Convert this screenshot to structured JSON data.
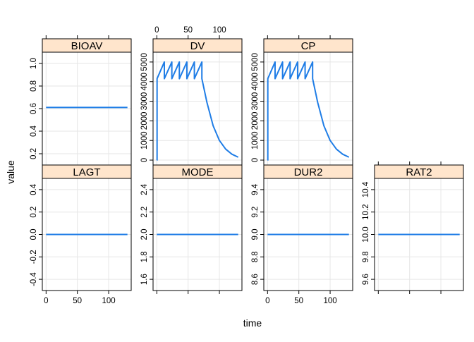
{
  "chart_data": {
    "type": "line",
    "layout": "lattice-panels",
    "xlabel": "time",
    "ylabel": "value",
    "line_color": "#1f7de6",
    "strip_color": "#ffe5cc",
    "grid": true,
    "panels": [
      {
        "name": "BIOAV",
        "ylim": [
          0.1,
          1.1
        ],
        "yticks": [
          "0.2",
          "0.4",
          "0.6",
          "0.8",
          "1.0"
        ],
        "ytick_values": [
          0.2,
          0.4,
          0.6,
          0.8,
          1.0
        ],
        "x": [
          0,
          130
        ],
        "y": [
          0.61,
          0.61
        ]
      },
      {
        "name": "DV",
        "ylim": [
          -250,
          5500
        ],
        "yticks": [
          "0",
          "1000",
          "2000",
          "3000",
          "4000",
          "5000"
        ],
        "ytick_values": [
          0,
          1000,
          2000,
          3000,
          4000,
          5000
        ],
        "x": [
          0,
          0.4,
          0.4,
          12,
          12,
          24,
          24,
          36,
          36,
          48,
          48,
          60,
          60,
          72,
          72,
          80,
          90,
          100,
          110,
          120,
          130
        ],
        "y": [
          0,
          0,
          4150,
          5000,
          4150,
          5000,
          4150,
          5000,
          4150,
          5000,
          4150,
          5000,
          4150,
          5000,
          4150,
          2950,
          1750,
          1000,
          560,
          300,
          150
        ]
      },
      {
        "name": "CP",
        "ylim": [
          -250,
          5500
        ],
        "yticks": [
          "0",
          "1000",
          "2000",
          "3000",
          "4000",
          "5000"
        ],
        "ytick_values": [
          0,
          1000,
          2000,
          3000,
          4000,
          5000
        ],
        "x": [
          0,
          0.4,
          0.4,
          12,
          12,
          24,
          24,
          36,
          36,
          48,
          48,
          60,
          60,
          72,
          72,
          80,
          90,
          100,
          110,
          120,
          130
        ],
        "y": [
          0,
          0,
          4150,
          5000,
          4150,
          5000,
          4150,
          5000,
          4150,
          5000,
          4150,
          5000,
          4150,
          5000,
          4150,
          2950,
          1750,
          1000,
          560,
          300,
          150
        ]
      },
      {
        "name": "LAGT",
        "ylim": [
          -0.5,
          0.5
        ],
        "yticks": [
          "-0.4",
          "-0.2",
          "0.0",
          "0.2",
          "0.4"
        ],
        "ytick_values": [
          -0.4,
          -0.2,
          0.0,
          0.2,
          0.4
        ],
        "x": [
          0,
          130
        ],
        "y": [
          0,
          0
        ]
      },
      {
        "name": "MODE",
        "ylim": [
          1.5,
          2.5
        ],
        "yticks": [
          "1.6",
          "1.8",
          "2.0",
          "2.2",
          "2.4"
        ],
        "ytick_values": [
          1.6,
          1.8,
          2.0,
          2.2,
          2.4
        ],
        "x": [
          0,
          130
        ],
        "y": [
          2,
          2
        ]
      },
      {
        "name": "DUR2",
        "ylim": [
          8.5,
          9.5
        ],
        "yticks": [
          "8.6",
          "8.8",
          "9.0",
          "9.2",
          "9.4"
        ],
        "ytick_values": [
          8.6,
          8.8,
          9.0,
          9.2,
          9.4
        ],
        "x": [
          0,
          130
        ],
        "y": [
          9,
          9
        ]
      },
      {
        "name": "RAT2",
        "ylim": [
          9.5,
          10.5
        ],
        "yticks": [
          "9.6",
          "9.8",
          "10.0",
          "10.2",
          "10.4"
        ],
        "ytick_values": [
          9.6,
          9.8,
          10.0,
          10.2,
          10.4
        ],
        "x": [
          0,
          130
        ],
        "y": [
          10,
          10
        ]
      }
    ],
    "xlim": [
      -6,
      136
    ],
    "xticks": [
      "0",
      "50",
      "100"
    ],
    "xtick_values": [
      0,
      50,
      100
    ]
  }
}
